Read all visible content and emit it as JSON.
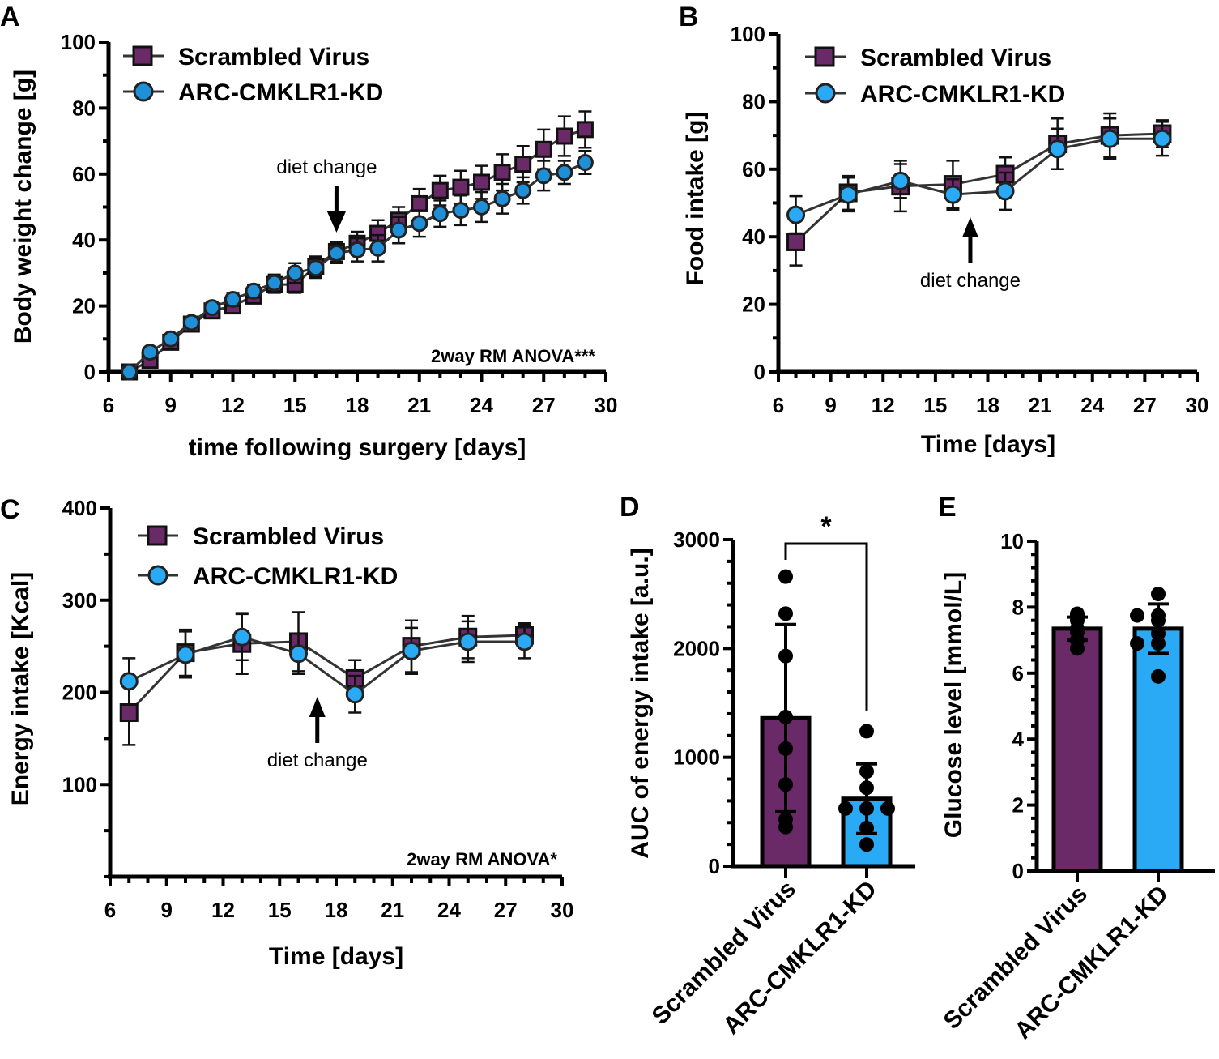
{
  "colors": {
    "scrambled": "#6a2a68",
    "kd_panelA": "#1f8fd8",
    "kd": "#2aaaf5",
    "line": "#333333"
  },
  "chart_data": [
    {
      "panel": "A",
      "type": "line",
      "xlabel": "time following surgery [days]",
      "ylabel": "Body weight change [g]",
      "xlim": [
        6,
        30
      ],
      "ylim": [
        0,
        100
      ],
      "xticks": [
        6,
        9,
        12,
        15,
        18,
        21,
        24,
        27,
        30
      ],
      "yticks": [
        0,
        20,
        40,
        60,
        80,
        100
      ],
      "legend": "top-left",
      "annotation": "diet change",
      "annotation_day": 17,
      "stat": "2way RM ANOVA***",
      "x": [
        7,
        8,
        9,
        10,
        11,
        12,
        13,
        14,
        15,
        16,
        17,
        18,
        19,
        20,
        21,
        22,
        23,
        24,
        25,
        26,
        27,
        28,
        29
      ],
      "series": [
        {
          "name": "Scrambled Virus",
          "marker": "square",
          "values": [
            0,
            3.5,
            9,
            14.5,
            18.5,
            20,
            23,
            26.5,
            26.5,
            32,
            36.5,
            39,
            42,
            46,
            51,
            55,
            56,
            57.5,
            60.5,
            63,
            67.5,
            71.5,
            73.5
          ],
          "error": [
            0,
            1,
            1,
            1.5,
            1.5,
            2,
            2,
            2.5,
            2.5,
            3,
            3,
            3.5,
            4,
            4,
            4.5,
            4.5,
            5,
            5,
            5.5,
            5.5,
            6,
            6,
            5.5
          ]
        },
        {
          "name": "ARC-CMKLR1-KD",
          "marker": "circle",
          "values": [
            0,
            6,
            10,
            15,
            19.5,
            22,
            24.5,
            27,
            30,
            31.5,
            36,
            37,
            37.5,
            43,
            45,
            48,
            49,
            50,
            52.5,
            55,
            59.5,
            60.5,
            63.5
          ],
          "error": [
            0,
            1,
            1,
            1,
            1.5,
            2,
            2,
            2.5,
            3,
            3,
            3,
            3.5,
            4,
            4,
            4,
            4,
            4.5,
            4.5,
            4.5,
            4,
            4.5,
            3.5,
            3.5
          ]
        }
      ]
    },
    {
      "panel": "B",
      "type": "line",
      "xlabel": "Time [days]",
      "ylabel": "Food intake [g]",
      "xlim": [
        6,
        30
      ],
      "ylim": [
        0,
        100
      ],
      "xticks": [
        6,
        9,
        12,
        15,
        18,
        21,
        24,
        27,
        30
      ],
      "yticks": [
        0,
        20,
        40,
        60,
        80,
        100
      ],
      "legend": "top",
      "annotation": "diet change",
      "annotation_day": 17,
      "x": [
        7,
        10,
        13,
        16,
        19,
        22,
        25,
        28
      ],
      "series": [
        {
          "name": "Scrambled Virus",
          "marker": "square",
          "values": [
            38.5,
            53,
            55,
            55.5,
            58.5,
            67.5,
            70,
            70.5
          ],
          "error": [
            7,
            5,
            7.5,
            7,
            5,
            7.5,
            6.5,
            4
          ]
        },
        {
          "name": "ARC-CMKLR1-KD",
          "marker": "circle",
          "values": [
            46.5,
            52.5,
            56.5,
            52.5,
            53.5,
            66,
            69,
            69
          ],
          "error": [
            5.5,
            5,
            5,
            4.5,
            5.5,
            6,
            6,
            5
          ]
        }
      ]
    },
    {
      "panel": "C",
      "type": "line",
      "xlabel": "Time [days]",
      "ylabel": "Energy intake [Kcal]",
      "xlim": [
        6,
        30
      ],
      "ylim": [
        0,
        400
      ],
      "xticks": [
        6,
        9,
        12,
        15,
        18,
        21,
        24,
        27,
        30
      ],
      "yticks": [
        100,
        200,
        300,
        400
      ],
      "legend": "top-left",
      "annotation": "diet change",
      "annotation_day": 17,
      "stat": "2way RM ANOVA*",
      "x": [
        7,
        10,
        13,
        16,
        19,
        22,
        25,
        28
      ],
      "series": [
        {
          "name": "Scrambled Virus",
          "marker": "square",
          "values": [
            178,
            243,
            253,
            255,
            215,
            250,
            260,
            262
          ],
          "error": [
            35,
            25,
            33,
            32,
            20,
            28,
            23,
            13
          ]
        },
        {
          "name": "ARC-CMKLR1-KD",
          "marker": "circle",
          "values": [
            212,
            241,
            260,
            242,
            198,
            245,
            255,
            255
          ],
          "error": [
            25,
            25,
            25,
            22,
            20,
            25,
            22,
            18
          ]
        }
      ]
    },
    {
      "panel": "D",
      "type": "bar",
      "ylabel": "AUC of energy intake [a.u.]",
      "ylim": [
        0,
        3000
      ],
      "yticks": [
        0,
        1000,
        2000,
        3000
      ],
      "categories": [
        "Scrambled Virus",
        "ARC-CMKLR1-KD"
      ],
      "values": [
        1360,
        620
      ],
      "sd": [
        860,
        320
      ],
      "points": [
        [
          2660,
          2320,
          1930,
          1370,
          1080,
          750,
          430,
          360
        ],
        [
          1240,
          870,
          720,
          530,
          530,
          530,
          350,
          200
        ]
      ],
      "significance": "*"
    },
    {
      "panel": "E",
      "type": "bar",
      "ylabel": "Glucose level [mmol/L]",
      "ylim": [
        0,
        10
      ],
      "yticks": [
        0,
        2,
        4,
        6,
        8,
        10
      ],
      "categories": [
        "Scrambled Virus",
        "ARC-CMKLR1-KD"
      ],
      "values": [
        7.35,
        7.35
      ],
      "sd": [
        0.35,
        0.75
      ],
      "points": [
        [
          7.8,
          7.75,
          7.6,
          7.35,
          7.3,
          7.25,
          7.0,
          6.75
        ],
        [
          8.4,
          7.75,
          7.75,
          7.6,
          7.2,
          6.9,
          6.9,
          5.9
        ]
      ]
    }
  ]
}
